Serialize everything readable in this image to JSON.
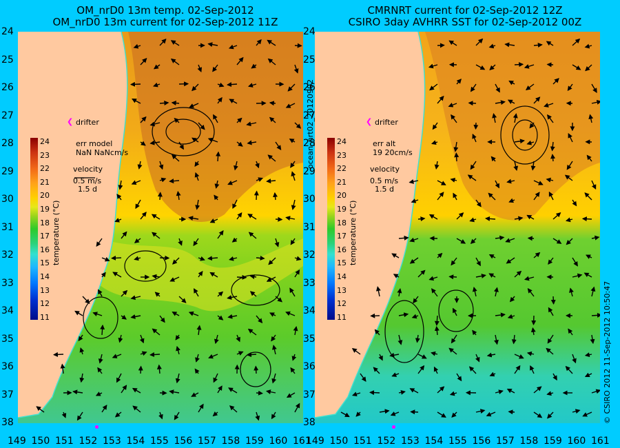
{
  "left_panel": {
    "title_line1": "OM_nrD0 13m temp. 02-Sep-2012",
    "title_line2": "OM_nrD0 13m current for 02-Sep-2012 11Z",
    "drifter_label": "drifter",
    "err_label": "err model",
    "err_value": "NaN NaNcm/s",
    "velocity_label": "velocity",
    "velocity_scale": "0.5 m/s",
    "velocity_time": "1.5 d",
    "colorbar_label": "temperature (°C)"
  },
  "right_panel": {
    "title_line1": "CMRNRT current for 02-Sep-2012 12Z",
    "title_line2": "CSIRO 3day AVHRR SST for 02-Sep-2012 00Z",
    "drifter_label": "drifter",
    "err_label": "err alt",
    "err_value": "19 20cm/s",
    "velocity_label": "velocity",
    "velocity_scale": "0.5 m/s",
    "velocity_time": "1.5 d",
    "colorbar_label": "temperature (°C)"
  },
  "vertical_left_label": "ocean_nrt02_20120902",
  "vertical_right_label": "© CSIRO 2012   11-Sep-2012 10:50:47",
  "lat_ticks": [
    "24",
    "25",
    "26",
    "27",
    "28",
    "29",
    "30",
    "31",
    "32",
    "33",
    "34",
    "35",
    "36",
    "37",
    "38"
  ],
  "lon_ticks": [
    "149",
    "150",
    "151",
    "152",
    "153",
    "154",
    "155",
    "156",
    "157",
    "158",
    "159",
    "160",
    "161"
  ],
  "colorbar_ticks": [
    "24",
    "23",
    "22",
    "21",
    "20",
    "19",
    "18",
    "17",
    "16",
    "15",
    "14",
    "13",
    "12",
    "11"
  ],
  "colors": {
    "background": "#00ccff",
    "land": "#ffc9a0",
    "drifter": "#ff00ff",
    "coastline": "#40e0d0"
  }
}
